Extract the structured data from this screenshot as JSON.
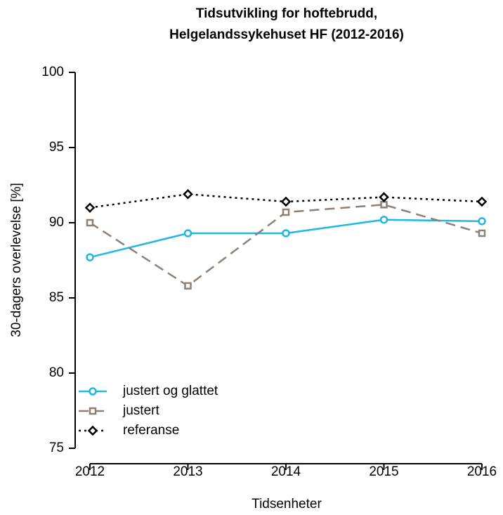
{
  "chart_data": {
    "type": "line",
    "title": [
      "Tidsutvikling for hoftebrudd,",
      "Helgelandssykehuset HF (2012-2016)"
    ],
    "xlabel": "Tidsenheter",
    "ylabel": "30-dagers overlevelse [%]",
    "x": [
      2012,
      2013,
      2014,
      2015,
      2016
    ],
    "xlim": [
      2012,
      2016
    ],
    "xticks": [
      2012,
      2013,
      2014,
      2015,
      2016
    ],
    "ylim": [
      75,
      100
    ],
    "yticks": [
      75,
      80,
      85,
      90,
      95,
      100
    ],
    "legend": "lower left",
    "series": [
      {
        "name": "justert og glattet",
        "color": "#1fb7e4",
        "linestyle": "solid",
        "marker": "circle",
        "values": [
          87.7,
          89.3,
          89.3,
          90.2,
          90.1
        ]
      },
      {
        "name": "justert",
        "color": "#8c8077",
        "linestyle": "dashed",
        "marker": "square",
        "values": [
          90.0,
          85.8,
          90.7,
          91.2,
          89.3
        ]
      },
      {
        "name": "referanse",
        "color": "#000000",
        "linestyle": "dotted",
        "marker": "diamond",
        "values": [
          91.0,
          91.9,
          91.4,
          91.7,
          91.4
        ]
      }
    ]
  }
}
